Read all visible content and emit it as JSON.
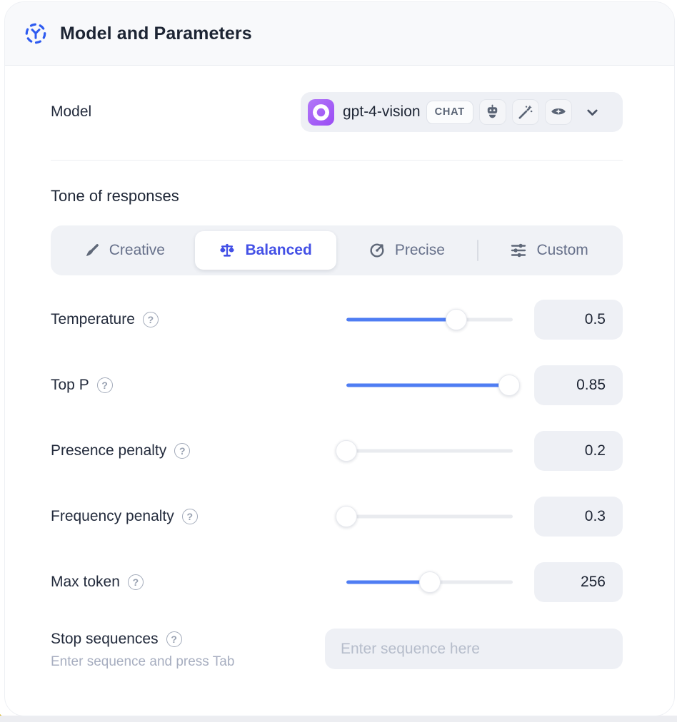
{
  "header": {
    "title": "Model and Parameters",
    "icon": "ai-dashed-circle-icon"
  },
  "model": {
    "label": "Model",
    "selected": "gpt-4-vision",
    "type_badge": "CHAT",
    "provider_icon": "openai-logo-icon",
    "capabilities": [
      "robot",
      "magic-wand",
      "vision-eye"
    ]
  },
  "tone": {
    "heading": "Tone of responses",
    "selected": "Balanced",
    "divider_after_index": 2,
    "options": [
      {
        "label": "Creative",
        "icon": "paintbrush-icon"
      },
      {
        "label": "Balanced",
        "icon": "balance-scale-icon"
      },
      {
        "label": "Precise",
        "icon": "target-icon"
      },
      {
        "label": "Custom",
        "icon": "sliders-icon"
      }
    ]
  },
  "parameters": [
    {
      "label": "Temperature",
      "value": "0.5",
      "percent": 66
    },
    {
      "label": "Top P",
      "value": "0.85",
      "percent": 98
    },
    {
      "label": "Presence penalty",
      "value": "0.2",
      "percent": 0
    },
    {
      "label": "Frequency penalty",
      "value": "0.3",
      "percent": 0
    },
    {
      "label": "Max token",
      "value": "256",
      "percent": 50
    }
  ],
  "stop_sequences": {
    "label": "Stop sequences",
    "hint": "Enter sequence and press Tab",
    "placeholder": "Enter sequence here",
    "value": ""
  },
  "colors": {
    "accent_blue": "#4f7df3",
    "active_indigo": "#4350e6",
    "provider_purple": "#9a4cf4",
    "header_icon_blue": "#2e5bf0",
    "wedge_yellow": "#d9b421"
  }
}
